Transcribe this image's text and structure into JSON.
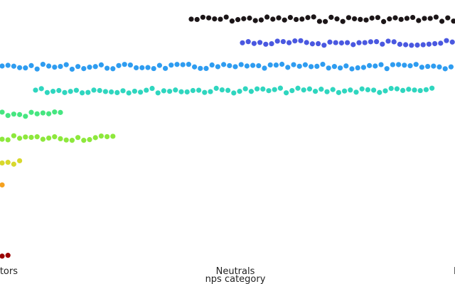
{
  "chart_data": {
    "type": "scatter",
    "subtype": "swarm",
    "xlabel": "nps category",
    "ylabel": "",
    "title": "",
    "x_tick_labels": [
      "Detractors",
      "Neutrals",
      "Promoters"
    ],
    "visible_x_tick_labels": [
      "tors",
      "Neutrals",
      "P"
    ],
    "grid": false,
    "series": [
      {
        "score": 10,
        "color": "#1c1618",
        "visible_points": 46
      },
      {
        "score": 9,
        "color": "#4a58e0",
        "visible_points": 37
      },
      {
        "score": 8,
        "color": "#2e9cf0",
        "visible_points": 78
      },
      {
        "score": 7,
        "color": "#2fd6bf",
        "visible_points": 69
      },
      {
        "score": 6,
        "color": "#46e680",
        "visible_points": 11
      },
      {
        "score": 5,
        "color": "#8de83c",
        "visible_points": 20
      },
      {
        "score": 4,
        "color": "#d8d82c",
        "visible_points": 4
      },
      {
        "score": 3,
        "color": "#f5a11f",
        "visible_points": 1
      },
      {
        "score": 2,
        "color": "#e05a10",
        "visible_points": 0
      },
      {
        "score": 1,
        "color": "#c82808",
        "visible_points": 0
      },
      {
        "score": 0,
        "color": "#9a0000",
        "visible_points": 2
      }
    ]
  }
}
